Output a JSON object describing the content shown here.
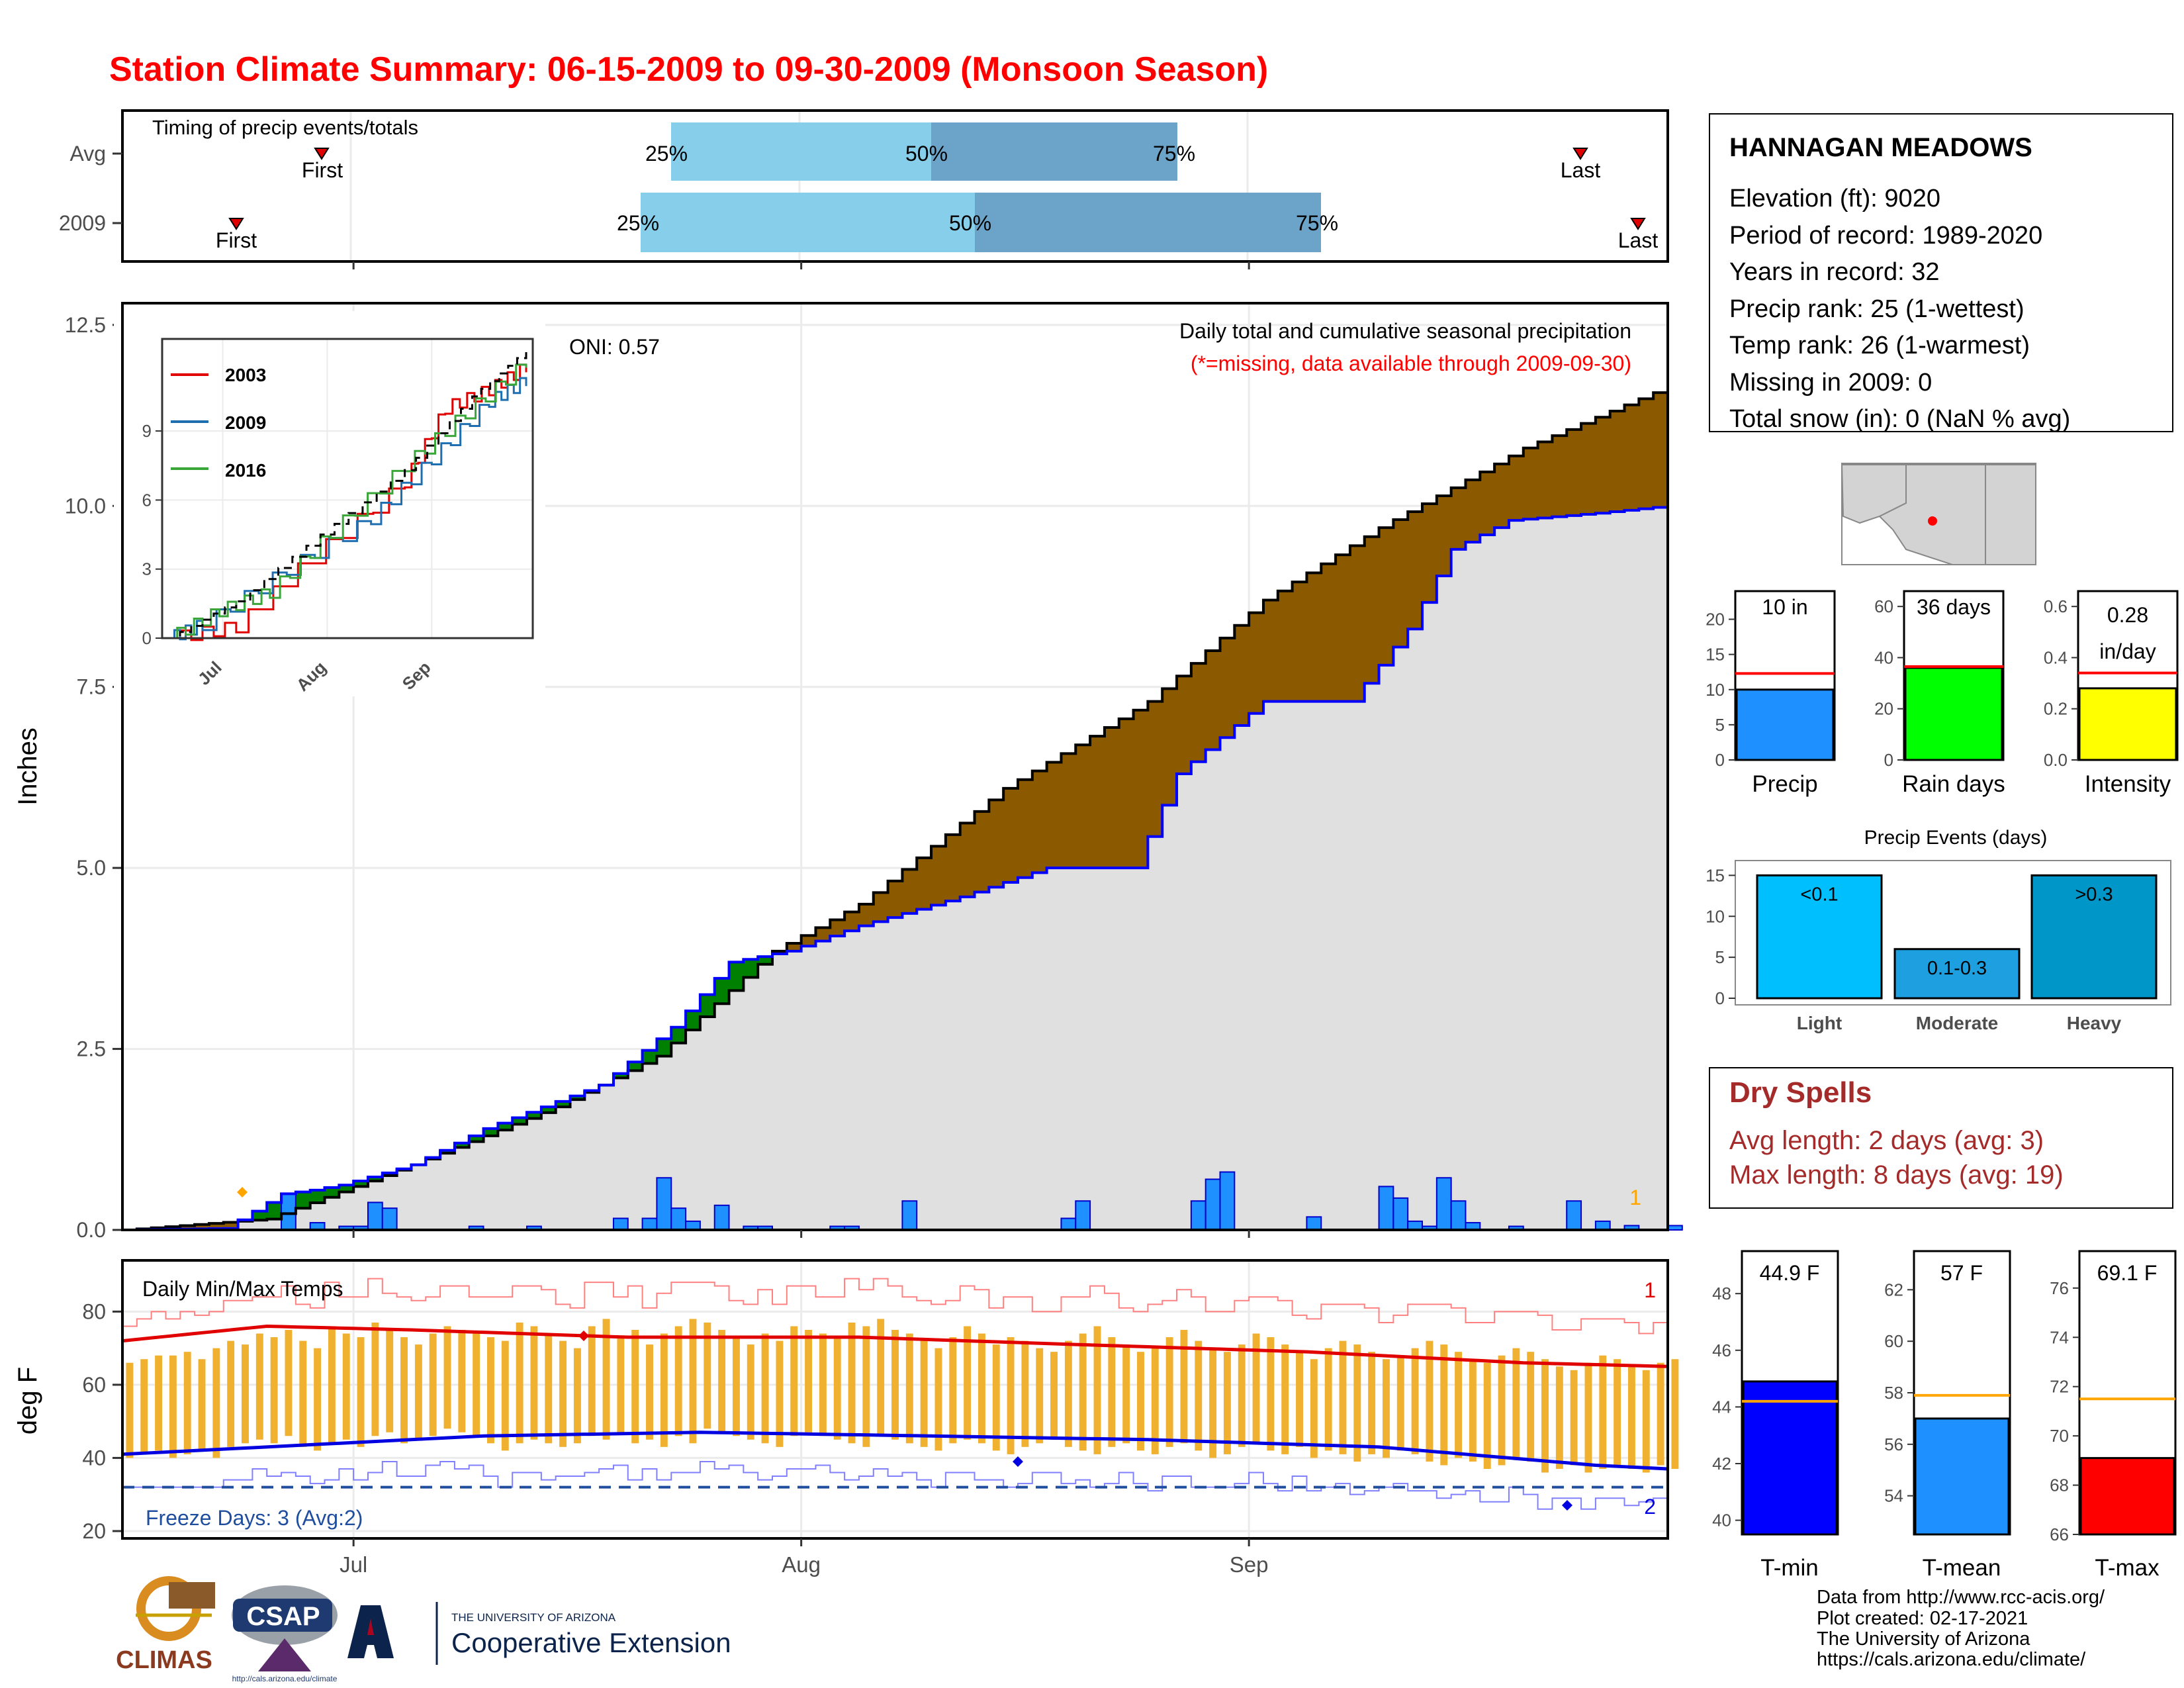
{
  "title": "Station Climate Summary: 06-15-2009 to 09-30-2009 (Monsoon Season)",
  "timing": {
    "label": "Timing of precip events/totals",
    "rows": [
      "Avg",
      "2009"
    ],
    "first_label": "First",
    "last_label": "Last",
    "p25": "25%",
    "p50": "50%",
    "p75": "75%"
  },
  "station": {
    "name": "HANNAGAN MEADOWS",
    "lines": [
      "Elevation (ft): 9020",
      "Period of record: 1989-2020",
      "Years in record: 32",
      "Precip rank: 25 (1-wettest)",
      "Temp rank: 26 (1-warmest)",
      "Missing in 2009: 0",
      "Total snow (in): 0 (NaN % avg)"
    ]
  },
  "main": {
    "ylabel": "Inches",
    "annotation": "Daily total and cumulative seasonal precipitation",
    "missing_note": "(*=missing, data available through 2009-09-30)",
    "oni": "ONI: 0.57",
    "corner_count": "1",
    "inset_legend": [
      "2003",
      "2009",
      "2016"
    ]
  },
  "temps": {
    "label": "Daily Min/Max Temps",
    "ylabel": "deg F",
    "freeze": "Freeze Days: 3 (Avg:2)",
    "max_count": "1",
    "min_count": "2"
  },
  "mini": {
    "precip": {
      "label": "10 in",
      "xlabel": "Precip"
    },
    "raindays": {
      "label": "36 days",
      "xlabel": "Rain days"
    },
    "intensity": {
      "label1": "0.28",
      "label2": "in/day",
      "xlabel": "Intensity"
    },
    "events": {
      "title": "Precip Events (days)",
      "cats": [
        "Light",
        "Moderate",
        "Heavy"
      ],
      "labels": [
        "<0.1",
        "0.1-0.3",
        ">0.3"
      ]
    },
    "tmin": {
      "label": "44.9 F",
      "xlabel": "T-min"
    },
    "tmean": {
      "label": "57 F",
      "xlabel": "T-mean"
    },
    "tmax": {
      "label": "69.1 F",
      "xlabel": "T-max"
    }
  },
  "dry_spells": {
    "title": "Dry Spells",
    "avg": "Avg length: 2 days (avg: 3)",
    "max": "Max length: 8 days (avg: 19)"
  },
  "footer": {
    "lines": [
      "Data from http://www.rcc-acis.org/",
      "Plot created: 02-17-2021",
      "The University of Arizona",
      "https://cals.arizona.edu/climate/"
    ],
    "climas": "CLIMAS",
    "csap": "CSAP",
    "csap_url": "http://cals.arizona.edu/climate",
    "ua_small": "THE UNIVERSITY OF ARIZONA",
    "ua_big": "Cooperative Extension"
  },
  "chart_data": [
    {
      "type": "area",
      "title": "Daily total and cumulative seasonal precipitation",
      "ylabel": "Inches",
      "xlabel": "",
      "x_ticks": [
        "Jul",
        "Aug",
        "Sep"
      ],
      "ylim": [
        0,
        12.8
      ],
      "y_ticks": [
        0.0,
        2.5,
        5.0,
        7.5,
        10.0,
        12.5
      ],
      "grid": true,
      "dates_start": "2009-06-15",
      "series": [
        {
          "name": "2009",
          "note": "cumulative, blue line",
          "points": [
            [
              "06-15",
              0
            ],
            [
              "06-22",
              0.02
            ],
            [
              "06-26",
              0.5
            ],
            [
              "06-28",
              0.55
            ],
            [
              "06-30",
              0.62
            ],
            [
              "07-05",
              0.9
            ],
            [
              "07-10",
              1.4
            ],
            [
              "07-18",
              2.0
            ],
            [
              "07-23",
              2.8
            ],
            [
              "07-27",
              3.7
            ],
            [
              "07-31",
              3.85
            ],
            [
              "08-05",
              4.2
            ],
            [
              "08-12",
              4.6
            ],
            [
              "08-18",
              5.0
            ],
            [
              "08-24",
              5.0
            ],
            [
              "08-27",
              6.3
            ],
            [
              "09-02",
              7.3
            ],
            [
              "09-08",
              7.3
            ],
            [
              "09-12",
              8.3
            ],
            [
              "09-15",
              9.4
            ],
            [
              "09-19",
              9.8
            ],
            [
              "09-25",
              9.9
            ],
            [
              "09-30",
              10.0
            ]
          ]
        },
        {
          "name": "Average",
          "note": "cumulative, black line",
          "points": [
            [
              "06-15",
              0
            ],
            [
              "06-25",
              0.15
            ],
            [
              "07-05",
              0.9
            ],
            [
              "07-15",
              1.7
            ],
            [
              "07-22",
              2.4
            ],
            [
              "07-30",
              3.85
            ],
            [
              "08-05",
              4.5
            ],
            [
              "08-15",
              6.1
            ],
            [
              "08-25",
              7.3
            ],
            [
              "09-02",
              8.7
            ],
            [
              "09-10",
              9.7
            ],
            [
              "09-20",
              10.8
            ],
            [
              "09-30",
              11.65
            ]
          ]
        }
      ],
      "daily_bars": {
        "note": "daily precipitation (blue bars)",
        "values": [
          [
            "06-26",
            0.5
          ],
          [
            "06-28",
            0.1
          ],
          [
            "06-30",
            0.05
          ],
          [
            "07-01",
            0.05
          ],
          [
            "07-02",
            0.38
          ],
          [
            "07-03",
            0.3
          ],
          [
            "07-09",
            0.05
          ],
          [
            "07-13",
            0.05
          ],
          [
            "07-19",
            0.16
          ],
          [
            "07-21",
            0.16
          ],
          [
            "07-22",
            0.72
          ],
          [
            "07-23",
            0.3
          ],
          [
            "07-24",
            0.12
          ],
          [
            "07-26",
            0.34
          ],
          [
            "07-28",
            0.05
          ],
          [
            "07-29",
            0.05
          ],
          [
            "08-03",
            0.05
          ],
          [
            "08-04",
            0.05
          ],
          [
            "08-08",
            0.4
          ],
          [
            "08-19",
            0.16
          ],
          [
            "08-20",
            0.4
          ],
          [
            "08-28",
            0.4
          ],
          [
            "08-29",
            0.7
          ],
          [
            "08-30",
            0.8
          ],
          [
            "09-05",
            0.18
          ],
          [
            "09-10",
            0.6
          ],
          [
            "09-11",
            0.44
          ],
          [
            "09-12",
            0.12
          ],
          [
            "09-13",
            0.05
          ],
          [
            "09-14",
            0.72
          ],
          [
            "09-15",
            0.4
          ],
          [
            "09-16",
            0.1
          ],
          [
            "09-19",
            0.05
          ],
          [
            "09-23",
            0.4
          ],
          [
            "09-25",
            0.12
          ],
          [
            "09-27",
            0.06
          ],
          [
            "09-30",
            0.06
          ]
        ]
      },
      "inset": {
        "type": "line",
        "y_ticks": [
          0,
          3,
          6,
          9
        ],
        "x_ticks": [
          "Jul",
          "Aug",
          "Sep"
        ],
        "series": [
          {
            "name": "2003",
            "points": [
              [
                0,
                0
              ],
              [
                20,
                0.5
              ],
              [
                42,
                3.5
              ],
              [
                70,
                6.8
              ],
              [
                82,
                10
              ],
              [
                95,
                10.8
              ],
              [
                106,
                11.8
              ]
            ]
          },
          {
            "name": "2009",
            "points": [
              [
                0,
                0
              ],
              [
                10,
                0.6
              ],
              [
                35,
                3.0
              ],
              [
                60,
                5.2
              ],
              [
                78,
                7.8
              ],
              [
                95,
                10.3
              ],
              [
                106,
                11.2
              ]
            ]
          },
          {
            "name": "2016",
            "points": [
              [
                0,
                0
              ],
              [
                15,
                1.2
              ],
              [
                30,
                2.0
              ],
              [
                48,
                4.6
              ],
              [
                70,
                7.5
              ],
              [
                88,
                9.8
              ],
              [
                106,
                12.0
              ]
            ]
          },
          {
            "name": "Average",
            "points": [
              [
                0,
                0
              ],
              [
                20,
                1.6
              ],
              [
                45,
                4.5
              ],
              [
                70,
                7.3
              ],
              [
                90,
                10.5
              ],
              [
                106,
                12.5
              ]
            ]
          }
        ]
      }
    },
    {
      "type": "bar",
      "title": "Daily Min/Max Temps",
      "ylabel": "deg F",
      "y_ticks": [
        20,
        40,
        60,
        80
      ],
      "ylim": [
        18,
        94
      ],
      "x_ticks": [
        "Jul",
        "Aug",
        "Sep"
      ],
      "daily_max_2009": [
        66,
        67,
        68,
        68,
        69,
        67,
        70,
        72,
        71,
        74,
        73,
        75,
        72,
        70,
        76,
        74,
        73,
        77,
        75,
        73,
        71,
        74,
        76,
        75,
        74,
        73,
        72,
        77,
        76,
        74,
        72,
        70,
        76,
        78,
        73,
        75,
        71,
        74,
        76,
        78,
        77,
        75,
        73,
        71,
        74,
        72,
        76,
        75,
        74,
        73,
        77,
        76,
        78,
        75,
        74,
        72,
        70,
        73,
        76,
        74,
        71,
        73,
        72,
        70,
        69,
        72,
        74,
        76,
        73,
        71,
        69,
        70,
        73,
        75,
        72,
        70,
        69,
        71,
        74,
        73,
        71,
        69,
        67,
        70,
        72,
        71,
        69,
        67,
        68,
        70,
        72,
        71,
        69,
        67,
        66,
        68,
        70,
        69,
        67,
        65,
        64,
        66,
        68,
        67,
        65,
        64,
        66,
        67
      ],
      "daily_min_2009": [
        40,
        41,
        42,
        40,
        41,
        42,
        40,
        43,
        44,
        45,
        44,
        46,
        43,
        42,
        44,
        45,
        43,
        46,
        47,
        44,
        45,
        46,
        48,
        47,
        46,
        44,
        42,
        44,
        45,
        44,
        43,
        44,
        46,
        45,
        47,
        44,
        45,
        43,
        46,
        44,
        48,
        47,
        46,
        45,
        44,
        43,
        46,
        47,
        46,
        45,
        44,
        43,
        46,
        45,
        44,
        43,
        42,
        44,
        45,
        44,
        42,
        41,
        43,
        44,
        45,
        43,
        42,
        41,
        43,
        44,
        42,
        41,
        43,
        44,
        42,
        40,
        41,
        43,
        44,
        42,
        41,
        43,
        40,
        42,
        41,
        39,
        41,
        40,
        42,
        41,
        39,
        38,
        40,
        39,
        37,
        38,
        40,
        39,
        36,
        37,
        38,
        36,
        37,
        38,
        37,
        36,
        38,
        37
      ],
      "avg_max_line": [
        [
          "06-15",
          72
        ],
        [
          "06-25",
          76
        ],
        [
          "07-05",
          75
        ],
        [
          "07-20",
          73
        ],
        [
          "08-05",
          73
        ],
        [
          "08-20",
          71
        ],
        [
          "09-05",
          69
        ],
        [
          "09-20",
          66
        ],
        [
          "09-30",
          65
        ]
      ],
      "avg_min_line": [
        [
          "06-15",
          41
        ],
        [
          "06-25",
          43
        ],
        [
          "07-10",
          46
        ],
        [
          "07-25",
          47
        ],
        [
          "08-10",
          46
        ],
        [
          "08-25",
          45
        ],
        [
          "09-10",
          43
        ],
        [
          "09-25",
          38
        ],
        [
          "09-30",
          37
        ]
      ],
      "freeze_line": 32
    },
    {
      "type": "bar",
      "xlabel": "Precip",
      "values": [
        10
      ],
      "average": 12.3,
      "y_ticks": [
        0,
        5,
        10,
        15,
        20
      ],
      "ylim": [
        0,
        24
      ]
    },
    {
      "type": "bar",
      "xlabel": "Rain days",
      "values": [
        36
      ],
      "average": 36.5,
      "y_ticks": [
        0,
        20,
        40,
        60
      ],
      "ylim": [
        0,
        66
      ]
    },
    {
      "type": "bar",
      "xlabel": "Intensity",
      "values": [
        0.28
      ],
      "average": 0.34,
      "y_ticks": [
        0.0,
        0.2,
        0.4,
        0.6
      ],
      "ylim": [
        0,
        0.66
      ]
    },
    {
      "type": "bar",
      "title": "Precip Events (days)",
      "categories": [
        "Light",
        "Moderate",
        "Heavy"
      ],
      "values": [
        15,
        6,
        15
      ],
      "y_ticks": [
        0,
        5,
        10,
        15
      ],
      "ylim": [
        0,
        16
      ]
    },
    {
      "type": "bar",
      "xlabel": "T-min",
      "values": [
        44.9
      ],
      "average": 44.2,
      "y_ticks": [
        40,
        42,
        44,
        46,
        48
      ],
      "ylim": [
        39.5,
        49.5
      ]
    },
    {
      "type": "bar",
      "xlabel": "T-mean",
      "values": [
        57
      ],
      "average": 57.9,
      "y_ticks": [
        54,
        56,
        58,
        60,
        62
      ],
      "ylim": [
        52.5,
        63.5
      ]
    },
    {
      "type": "bar",
      "xlabel": "T-max",
      "values": [
        69.1
      ],
      "average": 71.5,
      "y_ticks": [
        66,
        68,
        70,
        72,
        74,
        76
      ],
      "ylim": [
        66,
        77.5
      ]
    }
  ],
  "colors": {
    "title": "#ff0000",
    "blue": "#0000ff",
    "daily_bar": "#1e90ff",
    "above_avg": "#008000",
    "below_avg": "#8b5a00",
    "shade": "#e0e0e0",
    "p_light": "#87ceeb",
    "p_dark": "#6ba3c9",
    "temp_bar": "#f0b030",
    "dry": "#a52a2a",
    "rain_green": "#00ff00",
    "intensity": "#ffff00",
    "light_bar": "#00bfff",
    "mod_bar": "#1ea0e0",
    "heavy_bar": "#0096c8",
    "tmean": "#1e90ff"
  }
}
